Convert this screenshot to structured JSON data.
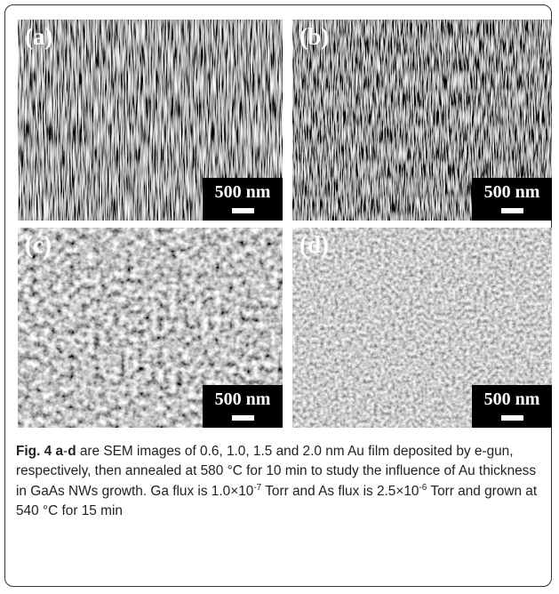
{
  "panels": [
    {
      "label": "(a)",
      "scale_bar": "500 nm"
    },
    {
      "label": "(b)",
      "scale_bar": "500 nm"
    },
    {
      "label": "(c)",
      "scale_bar": "500 nm"
    },
    {
      "label": "(d)",
      "scale_bar": "500 nm"
    }
  ],
  "caption": {
    "figure_label": "Fig. 4",
    "range_start": "a",
    "range_dash": "-",
    "range_end": "d",
    "text_1": " are SEM images of 0.6, 1.0, 1.5 and 2.0 nm Au film deposited by e-gun, respectively, then annealed at 580 °C for 10 min to study the influence of Au thickness in GaAs NWs growth. Ga flux is 1.0×10",
    "sup_1": "-7",
    "text_2": " Torr and As flux is 2.5×10",
    "sup_2": "-6",
    "text_3": " Torr and grown at 540 °C for 15 min"
  }
}
